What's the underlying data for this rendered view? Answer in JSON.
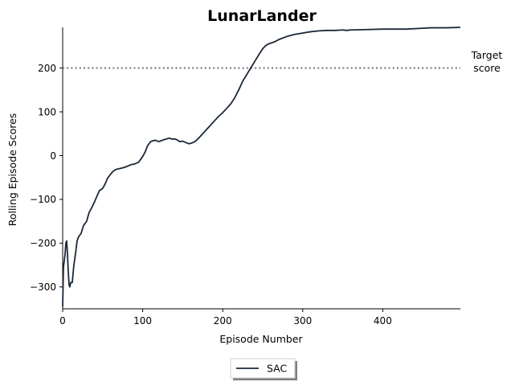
{
  "chart_data": {
    "type": "line",
    "title": "LunarLander",
    "xlabel": "Episode Number",
    "ylabel": "Rolling Episode Scores",
    "xlim": [
      0,
      497
    ],
    "ylim": [
      -350,
      293
    ],
    "xticks": [
      0,
      100,
      200,
      300,
      400
    ],
    "yticks": [
      -300,
      -200,
      -100,
      0,
      100,
      200
    ],
    "grid": false,
    "legend": {
      "position": "bottom-center",
      "entries": [
        "SAC"
      ]
    },
    "target": {
      "value": 200,
      "label_line1": "Target",
      "label_line2": "score",
      "style": "dotted",
      "color": "#7f7f7f"
    },
    "series": [
      {
        "name": "SAC",
        "color": "#1b2838",
        "x": [
          0,
          1,
          2,
          3,
          4,
          5,
          6,
          7,
          8,
          9,
          10,
          12,
          14,
          16,
          18,
          20,
          23,
          26,
          30,
          33,
          36,
          40,
          43,
          46,
          50,
          53,
          56,
          60,
          63,
          66,
          70,
          75,
          80,
          85,
          90,
          95,
          100,
          103,
          106,
          110,
          113,
          116,
          120,
          123,
          126,
          130,
          133,
          136,
          140,
          143,
          146,
          150,
          155,
          158,
          160,
          163,
          166,
          170,
          175,
          180,
          185,
          190,
          195,
          200,
          205,
          210,
          215,
          220,
          225,
          230,
          235,
          240,
          245,
          250,
          253,
          256,
          260,
          265,
          270,
          280,
          290,
          300,
          310,
          320,
          330,
          340,
          350,
          355,
          360,
          380,
          400,
          430,
          450,
          460,
          480,
          497
        ],
        "y": [
          -345,
          -255,
          -240,
          -225,
          -200,
          -195,
          -225,
          -265,
          -295,
          -300,
          -290,
          -290,
          -250,
          -225,
          -195,
          -185,
          -178,
          -160,
          -150,
          -130,
          -120,
          -105,
          -92,
          -80,
          -75,
          -65,
          -52,
          -42,
          -36,
          -32,
          -30,
          -28,
          -25,
          -21,
          -19,
          -15,
          -2,
          8,
          22,
          32,
          34,
          35,
          32,
          34,
          36,
          38,
          40,
          38,
          38,
          36,
          32,
          33,
          29,
          27,
          28,
          30,
          33,
          40,
          50,
          60,
          70,
          80,
          90,
          98,
          108,
          118,
          132,
          150,
          170,
          185,
          200,
          215,
          230,
          244,
          250,
          254,
          257,
          260,
          265,
          272,
          277,
          280,
          283,
          285,
          286,
          286,
          287,
          286,
          287,
          288,
          289,
          289,
          291,
          292,
          292,
          293
        ]
      }
    ]
  }
}
